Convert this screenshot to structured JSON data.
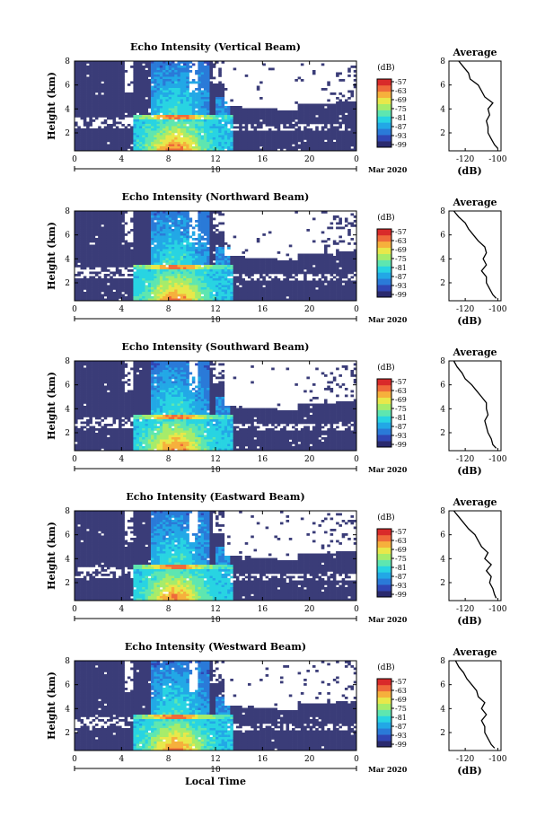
{
  "chart_data": [
    {
      "type": "heatmap",
      "title": "Echo Intensity (Vertical Beam)",
      "ylabel": "Height (km)",
      "xlabel": "",
      "x_ticks": [
        "0",
        "4",
        "8",
        "12",
        "16",
        "20",
        "0"
      ],
      "xlim": [
        0,
        24
      ],
      "y_ticks": [
        "8",
        "6",
        "4",
        "2"
      ],
      "ylim": [
        0.5,
        8
      ],
      "date_tick": "10",
      "date_label": "Mar 2020",
      "colorbar": {
        "label": "(dB)",
        "ticks": [
          "-57",
          "-63",
          "-69",
          "-75",
          "-81",
          "-87",
          "-93",
          "-99"
        ]
      },
      "avg_profile": {
        "title": "Average",
        "xlabel": "(dB)",
        "x_ticks": [
          "-120",
          "-100"
        ],
        "xlim": [
          -130,
          -98
        ],
        "y_ticks": [
          "8",
          "6",
          "4",
          "2"
        ],
        "height": [
          8.0,
          7.5,
          7.0,
          6.5,
          6.0,
          5.5,
          5.0,
          4.5,
          4.0,
          3.5,
          3.0,
          2.5,
          2.0,
          1.5,
          1.0,
          0.7
        ],
        "value": [
          -124,
          -121,
          -118,
          -117,
          -112,
          -110,
          -108,
          -103,
          -106,
          -105,
          -107,
          -106,
          -106,
          -104,
          -102,
          -100
        ]
      }
    },
    {
      "type": "heatmap",
      "title": "Echo Intensity (Northward Beam)",
      "ylabel": "Height (km)",
      "xlabel": "",
      "x_ticks": [
        "0",
        "4",
        "8",
        "12",
        "16",
        "20",
        "0"
      ],
      "xlim": [
        0,
        24
      ],
      "y_ticks": [
        "8",
        "6",
        "4",
        "2"
      ],
      "ylim": [
        0.5,
        8
      ],
      "date_tick": "10",
      "date_label": "Mar 2020",
      "colorbar": {
        "label": "(dB)",
        "ticks": [
          "-57",
          "-63",
          "-69",
          "-75",
          "-81",
          "-87",
          "-93",
          "-99"
        ]
      },
      "avg_profile": {
        "title": "Average",
        "xlabel": "(dB)",
        "x_ticks": [
          "-120",
          "-100"
        ],
        "xlim": [
          -130,
          -98
        ],
        "y_ticks": [
          "8",
          "6",
          "4",
          "2"
        ],
        "height": [
          8.0,
          7.5,
          7.0,
          6.5,
          6.0,
          5.5,
          5.0,
          4.5,
          4.0,
          3.5,
          3.0,
          2.5,
          2.0,
          1.5,
          1.0,
          0.7
        ],
        "value": [
          -127,
          -124,
          -120,
          -118,
          -115,
          -112,
          -108,
          -107,
          -109,
          -107,
          -110,
          -107,
          -107,
          -105,
          -103,
          -101
        ]
      }
    },
    {
      "type": "heatmap",
      "title": "Echo Intensity (Southward Beam)",
      "ylabel": "Height (km)",
      "xlabel": "",
      "x_ticks": [
        "0",
        "4",
        "8",
        "12",
        "16",
        "20",
        "0"
      ],
      "xlim": [
        0,
        24
      ],
      "y_ticks": [
        "8",
        "6",
        "4",
        "2"
      ],
      "ylim": [
        0.5,
        8
      ],
      "date_tick": "10",
      "date_label": "Mar 2020",
      "colorbar": {
        "label": "(dB)",
        "ticks": [
          "-57",
          "-63",
          "-69",
          "-75",
          "-81",
          "-87",
          "-93",
          "-99"
        ]
      },
      "avg_profile": {
        "title": "Average",
        "xlabel": "(dB)",
        "x_ticks": [
          "-120",
          "-100"
        ],
        "xlim": [
          -130,
          -98
        ],
        "y_ticks": [
          "8",
          "6",
          "4",
          "2"
        ],
        "height": [
          8.0,
          7.5,
          7.0,
          6.5,
          6.0,
          5.5,
          5.0,
          4.5,
          4.0,
          3.5,
          3.0,
          2.5,
          2.0,
          1.5,
          1.0,
          0.7
        ],
        "value": [
          -127,
          -125,
          -122,
          -120,
          -116,
          -113,
          -110,
          -107,
          -107,
          -106,
          -108,
          -107,
          -106,
          -104,
          -103,
          -101
        ]
      }
    },
    {
      "type": "heatmap",
      "title": "Echo Intensity (Eastward Beam)",
      "ylabel": "Height (km)",
      "xlabel": "",
      "x_ticks": [
        "0",
        "4",
        "8",
        "12",
        "16",
        "20",
        "0"
      ],
      "xlim": [
        0,
        24
      ],
      "y_ticks": [
        "8",
        "6",
        "4",
        "2"
      ],
      "ylim": [
        0.5,
        8
      ],
      "date_tick": "10",
      "date_label": "Mar 2020",
      "colorbar": {
        "label": "(dB)",
        "ticks": [
          "-57",
          "-63",
          "-69",
          "-75",
          "-81",
          "-87",
          "-93",
          "-99"
        ]
      },
      "avg_profile": {
        "title": "Average",
        "xlabel": "(dB)",
        "x_ticks": [
          "-120",
          "-100"
        ],
        "xlim": [
          -130,
          -98
        ],
        "y_ticks": [
          "8",
          "6",
          "4",
          "2"
        ],
        "height": [
          8.0,
          7.5,
          7.0,
          6.5,
          6.0,
          5.5,
          5.0,
          4.5,
          4.0,
          3.5,
          3.0,
          2.5,
          2.0,
          1.5,
          1.0,
          0.7
        ],
        "value": [
          -127,
          -124,
          -121,
          -118,
          -114,
          -112,
          -110,
          -106,
          -108,
          -104,
          -107,
          -104,
          -105,
          -103,
          -102,
          -101
        ]
      }
    },
    {
      "type": "heatmap",
      "title": "Echo Intensity (Westward Beam)",
      "ylabel": "Height (km)",
      "xlabel": "Local Time",
      "x_ticks": [
        "0",
        "4",
        "8",
        "12",
        "16",
        "20",
        "0"
      ],
      "xlim": [
        0,
        24
      ],
      "y_ticks": [
        "8",
        "6",
        "4",
        "2"
      ],
      "ylim": [
        0.5,
        8
      ],
      "date_tick": "10",
      "date_label": "Mar 2020",
      "colorbar": {
        "label": "(dB)",
        "ticks": [
          "-57",
          "-63",
          "-69",
          "-75",
          "-81",
          "-87",
          "-93",
          "-99"
        ]
      },
      "avg_profile": {
        "title": "Average",
        "xlabel": "(dB)",
        "x_ticks": [
          "-120",
          "-100"
        ],
        "xlim": [
          -130,
          -98
        ],
        "y_ticks": [
          "8",
          "6",
          "4",
          "2"
        ],
        "height": [
          8.0,
          7.5,
          7.0,
          6.5,
          6.0,
          5.5,
          5.0,
          4.5,
          4.0,
          3.5,
          3.0,
          2.5,
          2.0,
          1.5,
          1.0,
          0.7
        ],
        "value": [
          -126,
          -124,
          -121,
          -119,
          -116,
          -113,
          -112,
          -108,
          -110,
          -107,
          -110,
          -108,
          -108,
          -106,
          -104,
          -102
        ]
      }
    }
  ],
  "colors": {
    "background": "#ffffff",
    "noise_floor": "#3a3c78",
    "colormap": [
      "#2a2a6e",
      "#3046b4",
      "#2a7ad8",
      "#22a8e6",
      "#28d4e2",
      "#5ee6b0",
      "#a6ec6a",
      "#e8e84a",
      "#f6b03c",
      "#ef6a3a",
      "#d92a2a"
    ]
  }
}
